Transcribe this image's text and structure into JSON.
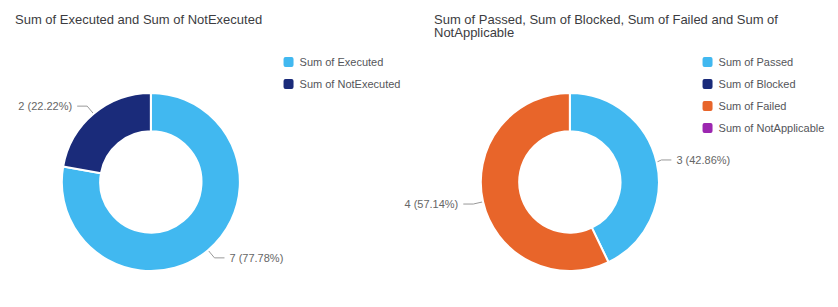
{
  "chart_data": [
    {
      "type": "donut",
      "title": "Sum of Executed and Sum of NotExecuted",
      "categories": [
        "Sum of Executed",
        "Sum of NotExecuted"
      ],
      "values": [
        7,
        2
      ],
      "value_labels": [
        "7 (77.78%)",
        "2 (22.22%)"
      ],
      "colors": [
        "#41B8F0",
        "#1A2B7A"
      ],
      "data_labels": true,
      "legend": "upper right"
    },
    {
      "type": "donut",
      "title": "Sum of Passed, Sum of Blocked, Sum of Failed and Sum of NotApplicable",
      "categories": [
        "Sum of Passed",
        "Sum of Blocked",
        "Sum of Failed",
        "Sum of NotApplicable"
      ],
      "values": [
        3,
        null,
        4,
        null
      ],
      "value_labels": [
        "3 (42.86%)",
        null,
        "4 (57.14%)",
        null
      ],
      "colors": [
        "#41B8F0",
        "#1A2B7A",
        "#E8652A",
        "#9C27B0"
      ],
      "data_labels": true,
      "legend": "upper right"
    }
  ]
}
